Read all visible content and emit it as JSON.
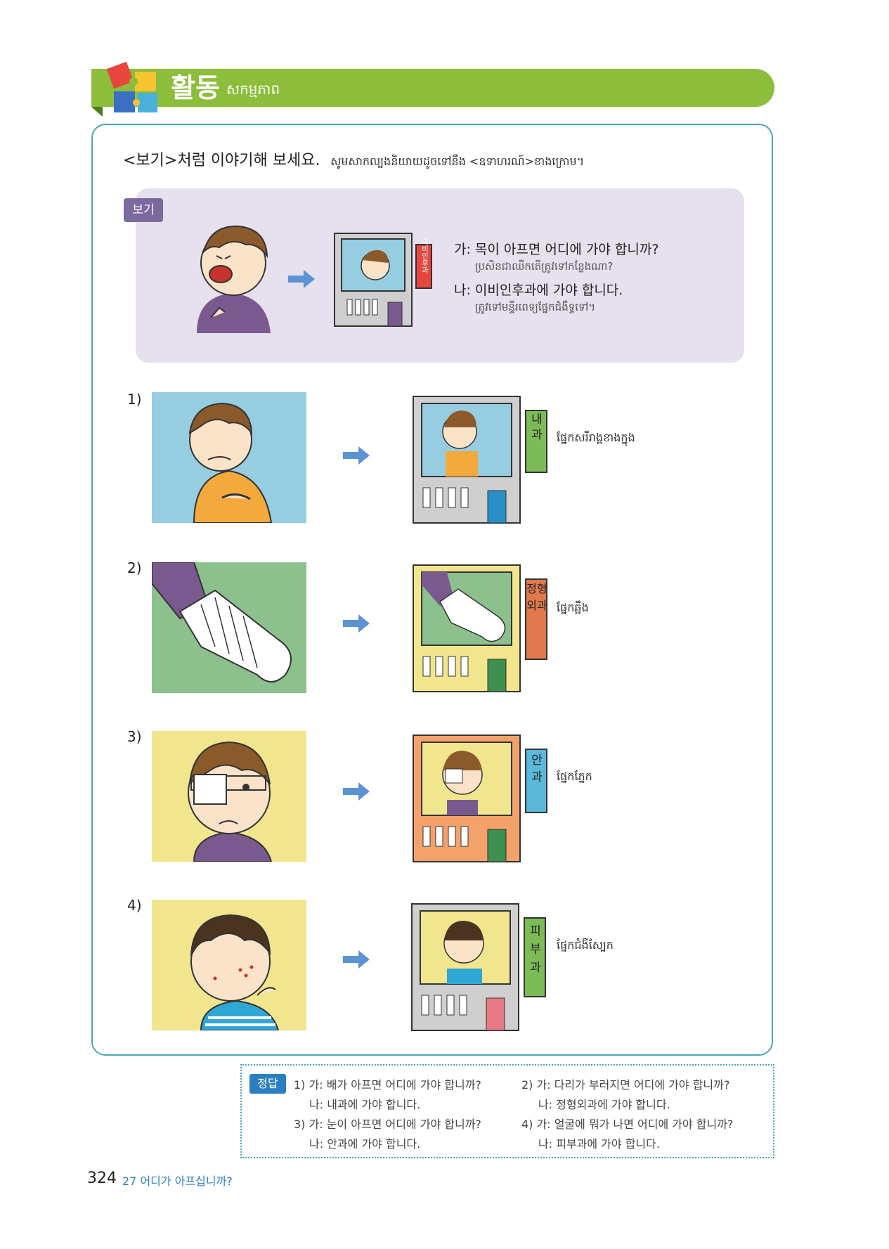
{
  "header": {
    "title": "활동",
    "subtitle_khmer": "សកម្មភាព"
  },
  "instruction": {
    "korean": "<보기>처럼 이야기해 보세요.",
    "khmer": "សូមសាកល្បងនិយាយដូចទៅនឹង <ឧទាហរណ៍>ខាងក្រោម។"
  },
  "example": {
    "tag": "보기",
    "sign_label": "이비인후과",
    "line1": "가: 목이 아프면 어디에 가야 합니까?",
    "line1_khmer": "ប្រសិនជាឈឺកតើត្រូវទៅកន្លែងណា?",
    "line2": "나: 이비인후과에 가야 합니다.",
    "line2_khmer": "ត្រូវទៅមន្ទីរពេទ្យផ្នែកជំងឺទ្វទៅ។"
  },
  "items": [
    {
      "number": "1)",
      "sign": "내과",
      "khmer": "ផ្នែកសរីរាង្គខាងក្នុង",
      "sign_color": "#7dbb57",
      "frame_color": "#cfcfcf",
      "bg_color": "#96cde0"
    },
    {
      "number": "2)",
      "sign": "정형외과",
      "khmer": "ផ្នែកឆ្អឹង",
      "sign_color": "#e07a4c",
      "frame_color": "#f1e58e",
      "bg_color": "#8cc08c"
    },
    {
      "number": "3)",
      "sign": "안과",
      "khmer": "ផ្នែកភ្នែក",
      "sign_color": "#5ab8d9",
      "frame_color": "#f2a26a",
      "bg_color": "#f1e58e"
    },
    {
      "number": "4)",
      "sign": "피부과",
      "khmer": "ផ្នែកជំងឺស្បែក",
      "sign_color": "#7dbb57",
      "frame_color": "#cfcfcf",
      "bg_color": "#f1e58e"
    }
  ],
  "answers": {
    "tag": "정답",
    "a1_q": "1) 가: 배가 아프면 어디에 가야 합니까?",
    "a1_a": "나: 내과에 가야 합니다.",
    "a2_q": "2) 가: 다리가 부러지면 어디에 가야 합니까?",
    "a2_a": "나: 정형외과에 가야 합니다.",
    "a3_q": "3) 가: 눈이 아프면 어디에 가야 합니까?",
    "a3_a": "나: 안과에 가야 합니다.",
    "a4_q": "4) 가: 얼굴에 뭐가 나면 어디에 가야 합니까?",
    "a4_a": "나: 피부과에 가야 합니다."
  },
  "footer": {
    "page_number": "324",
    "chapter": "27 어디가 아프십니까?"
  }
}
